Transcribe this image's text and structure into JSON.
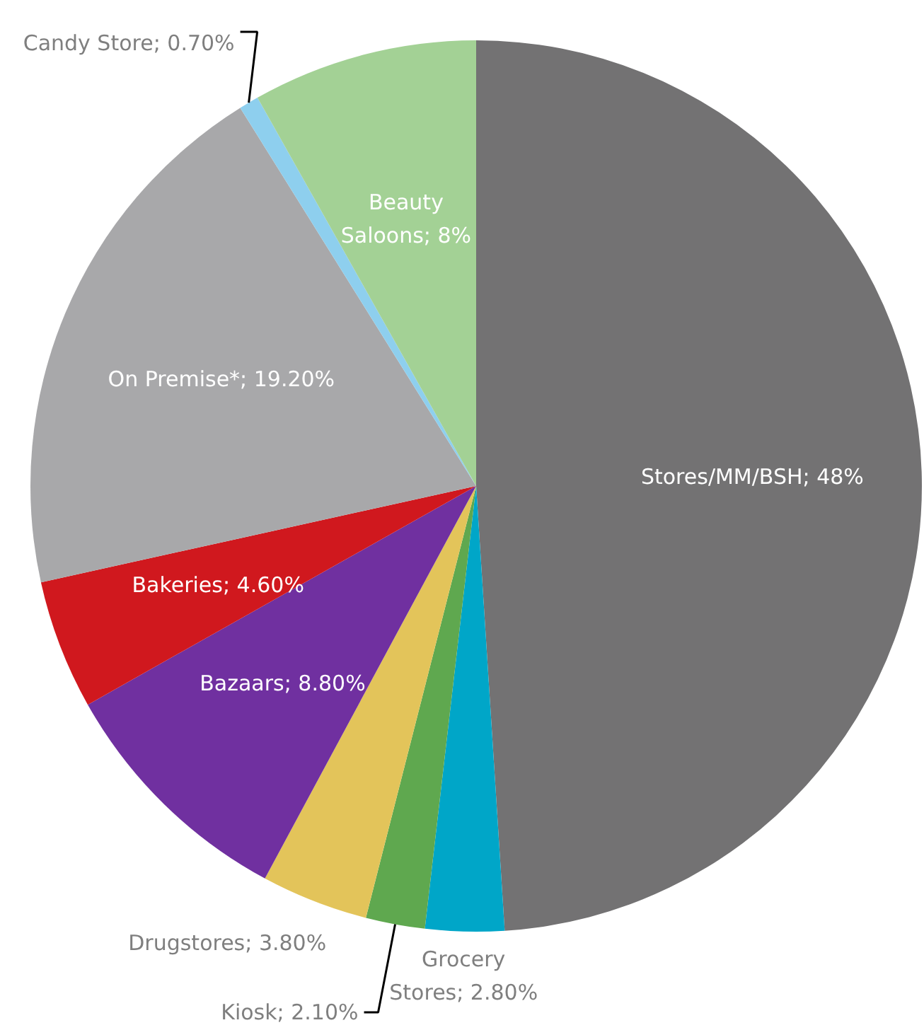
{
  "chart_data": {
    "type": "pie",
    "categories": [
      "Stores/MM/BSH",
      "Grocery Stores",
      "Kiosk",
      "Drugstores",
      "Bazaars",
      "Bakeries",
      "On Premise*",
      "Candy Store",
      "Beauty Saloons"
    ],
    "values": [
      48,
      2.8,
      2.1,
      3.8,
      8.8,
      4.6,
      19.2,
      0.7,
      8
    ],
    "value_labels": [
      "48%",
      "2.80%",
      "2.10%",
      "3.80%",
      "8.80%",
      "4.60%",
      "19.20%",
      "0.70%",
      "8%"
    ],
    "colors": [
      "#737273",
      "#00a6c8",
      "#5fa84f",
      "#e3c45a",
      "#7030a0",
      "#d0181e",
      "#a8a8aa",
      "#8ecfee",
      "#a3d195"
    ],
    "legend": false
  }
}
